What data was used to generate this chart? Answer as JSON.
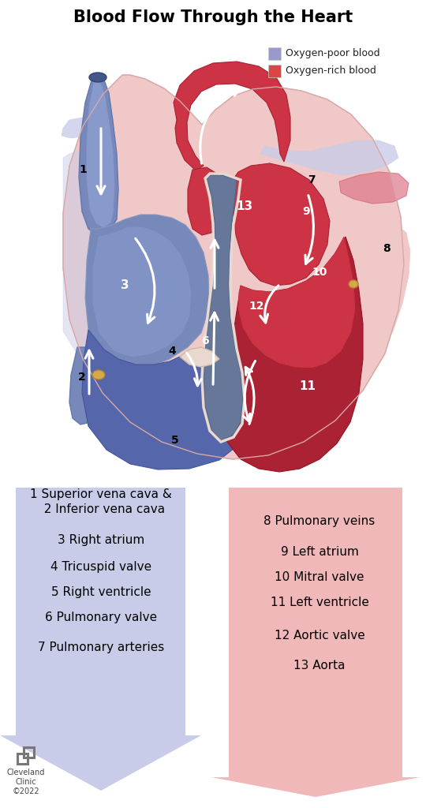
{
  "title": "Blood Flow Through the Heart",
  "title_fontsize": 15,
  "title_fontweight": "bold",
  "background_color": "#ffffff",
  "legend_items": [
    {
      "label": "Oxygen-poor blood",
      "color": "#9999cc"
    },
    {
      "label": "Oxygen-rich blood",
      "color": "#dd4444"
    }
  ],
  "left_labels": [
    "1 Superior vena cava &\n  2 Inferior vena cava",
    "3 Right atrium",
    "4 Tricuspid valve",
    "5 Right ventricle",
    "6 Pulmonary valve",
    "7 Pulmonary arteries"
  ],
  "right_labels": [
    "8 Pulmonary veins",
    "9 Left atrium",
    "10 Mitral valve",
    "11 Left ventricle",
    "12 Aortic valve",
    "13 Aorta"
  ],
  "label_fontsize": 11,
  "copyright_text": "©2022",
  "clinic_text": "Cleveland\nClinic"
}
